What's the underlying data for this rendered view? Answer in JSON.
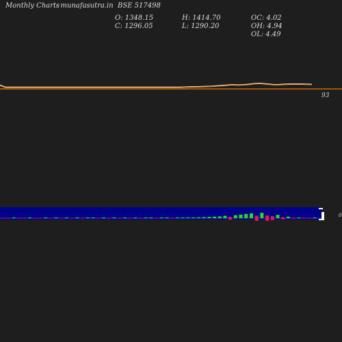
{
  "header": {
    "left": "Monthly Charts",
    "site": "- munafasutra.in",
    "symbol": "BSE 517498",
    "open": "O: 1348.15",
    "close": "C: 1296.05",
    "high": "H: 1414.70",
    "low": "L: 1290.20",
    "oc": "OC: 4.02",
    "oh": "OH: 4.94",
    "ol": "OL: 4.49"
  },
  "chart_data": [
    {
      "type": "line",
      "series": [
        {
          "color": "#ff8c1a",
          "values": [
            1.6,
            0.2,
            0.2,
            0.2,
            0.2,
            0.2,
            0.2,
            0.2,
            0.2,
            0.2,
            0.2,
            0.2,
            0.2,
            0.2,
            0.2,
            0.2,
            0.2,
            0.2,
            0.2,
            0.2,
            0.2,
            0.2,
            0.2,
            0.2,
            0.2,
            0.2,
            0.2,
            0.2,
            0.2,
            0.2,
            0.2,
            0.2,
            0.2,
            0.2,
            0.2,
            0.3,
            0.4,
            0.5,
            0.6,
            0.7,
            0.8,
            1.1,
            1.3,
            1.6,
            1.9,
            1.7,
            1.9,
            2.1,
            2.6,
            2.8,
            2.5,
            2.2,
            1.9,
            2.0,
            2.2,
            2.3,
            2.3,
            2.3,
            2.2,
            2.1
          ]
        }
      ],
      "baseline_color": "#cc6a00",
      "price_label": "93"
    },
    {
      "type": "bar",
      "panel_color": "#00008b",
      "up_color": "#22dd22",
      "down_color": "#e8174a",
      "candles": [
        {
          "dir": "down",
          "size": 0.3
        },
        {
          "dir": "down",
          "size": 0.3
        },
        {
          "dir": "up",
          "size": 0.3
        },
        {
          "dir": "down",
          "size": 0.3
        },
        {
          "dir": "down",
          "size": 0.3
        },
        {
          "dir": "up",
          "size": 0.3
        },
        {
          "dir": "down",
          "size": 0.3
        },
        {
          "dir": "down",
          "size": 0.3
        },
        {
          "dir": "up",
          "size": 0.3
        },
        {
          "dir": "down",
          "size": 0.3
        },
        {
          "dir": "up",
          "size": 0.3
        },
        {
          "dir": "down",
          "size": 0.3
        },
        {
          "dir": "up",
          "size": 0.3
        },
        {
          "dir": "down",
          "size": 0.3
        },
        {
          "dir": "up",
          "size": 0.3
        },
        {
          "dir": "down",
          "size": 0.3
        },
        {
          "dir": "up",
          "size": 0.3
        },
        {
          "dir": "up",
          "size": 0.3
        },
        {
          "dir": "down",
          "size": 0.3
        },
        {
          "dir": "up",
          "size": 0.3
        },
        {
          "dir": "down",
          "size": 0.3
        },
        {
          "dir": "up",
          "size": 0.3
        },
        {
          "dir": "down",
          "size": 0.3
        },
        {
          "dir": "up",
          "size": 0.3
        },
        {
          "dir": "down",
          "size": 0.3
        },
        {
          "dir": "up",
          "size": 0.3
        },
        {
          "dir": "down",
          "size": 0.3
        },
        {
          "dir": "up",
          "size": 0.3
        },
        {
          "dir": "up",
          "size": 0.3
        },
        {
          "dir": "down",
          "size": 0.3
        },
        {
          "dir": "up",
          "size": 0.3
        },
        {
          "dir": "up",
          "size": 0.3
        },
        {
          "dir": "down",
          "size": 0.3
        },
        {
          "dir": "up",
          "size": 0.3
        },
        {
          "dir": "up",
          "size": 0.3
        },
        {
          "dir": "up",
          "size": 0.5
        },
        {
          "dir": "up",
          "size": 0.5
        },
        {
          "dir": "up",
          "size": 0.6
        },
        {
          "dir": "up",
          "size": 0.7
        },
        {
          "dir": "up",
          "size": 0.8
        },
        {
          "dir": "up",
          "size": 1.0
        },
        {
          "dir": "up",
          "size": 1.2
        },
        {
          "dir": "up",
          "size": 1.6
        },
        {
          "dir": "down",
          "size": 1.8
        },
        {
          "dir": "up",
          "size": 2.0
        },
        {
          "dir": "up",
          "size": 2.4
        },
        {
          "dir": "up",
          "size": 2.8
        },
        {
          "dir": "up",
          "size": 3.2
        },
        {
          "dir": "down",
          "size": 3.4
        },
        {
          "dir": "up",
          "size": 3.6
        },
        {
          "dir": "down",
          "size": 3.6
        },
        {
          "dir": "down",
          "size": 2.6
        },
        {
          "dir": "up",
          "size": 2.2
        },
        {
          "dir": "down",
          "size": 1.4
        },
        {
          "dir": "up",
          "size": 1.0
        },
        {
          "dir": "down",
          "size": 0.6
        },
        {
          "dir": "up",
          "size": 0.4
        },
        {
          "dir": "down",
          "size": 0.4
        },
        {
          "dir": "down",
          "size": 0.4
        },
        {
          "dir": "up",
          "size": 0.4
        }
      ],
      "right_label": "0"
    }
  ]
}
